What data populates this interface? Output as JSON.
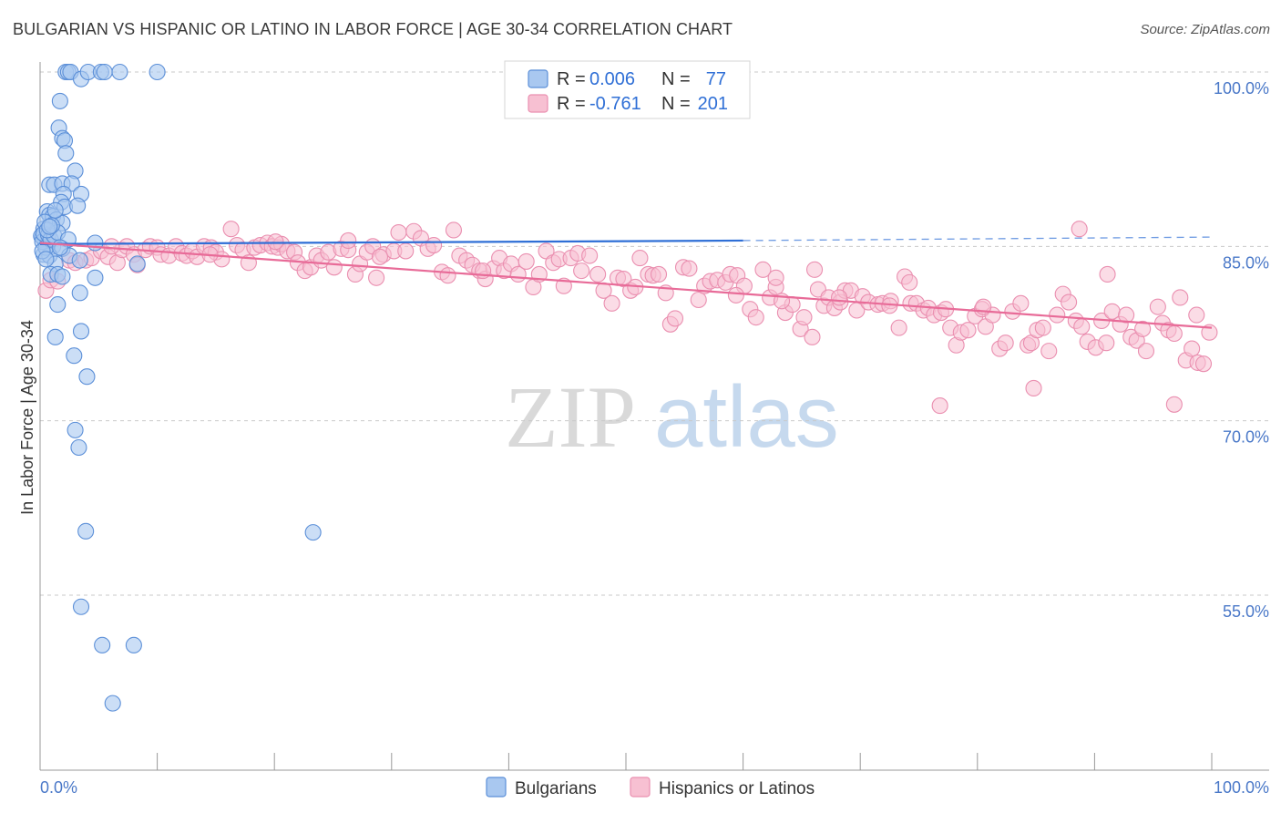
{
  "title": "BULGARIAN VS HISPANIC OR LATINO IN LABOR FORCE | AGE 30-34 CORRELATION CHART",
  "source": "Source: ZipAtlas.com",
  "watermark": {
    "zip": "ZIP",
    "atlas": "atlas"
  },
  "legend": {
    "rows": [
      {
        "r_label": "R =",
        "r_value": "0.006",
        "n_label": "N =",
        "n_value": "77"
      },
      {
        "r_label": "R =",
        "r_value": "-0.761",
        "n_label": "N =",
        "n_value": "201"
      }
    ]
  },
  "bottom_legend": [
    "Bulgarians",
    "Hispanics or Latinos"
  ],
  "colors": {
    "blue_fill": "#a9c8f0",
    "blue_stroke": "#5b8fd8",
    "blue_line": "#2f6fd6",
    "pink_fill": "#f7c0d2",
    "pink_stroke": "#ea8fb0",
    "pink_line": "#e86b98",
    "grid": "#c9c9c9",
    "tick_text": "#4a78c8"
  },
  "chart_data": {
    "type": "scatter",
    "title": "BULGARIAN VS HISPANIC OR LATINO IN LABOR FORCE | AGE 30-34 CORRELATION CHART",
    "ylabel": "In Labor Force | Age 30-34",
    "xlabel": "",
    "x_tick_labels": [
      "0.0%",
      "100.0%"
    ],
    "y_tick_labels": [
      "100.0%",
      "85.0%",
      "70.0%",
      "55.0%"
    ],
    "y_ticks": [
      100,
      85,
      70,
      55
    ],
    "xlim": [
      0,
      100
    ],
    "ylim": [
      41,
      102
    ],
    "grid": "horizontal dashed",
    "legend_position": "top-center",
    "series": [
      {
        "name": "Bulgarians",
        "r": 0.006,
        "n": 77,
        "trend": {
          "x": [
            0,
            60
          ],
          "y": [
            85.2,
            85.5
          ]
        },
        "trend_dashed": {
          "x": [
            60,
            100
          ],
          "y": [
            85.5,
            85.8
          ]
        },
        "points": [
          [
            2.2,
            100
          ],
          [
            2.4,
            100
          ],
          [
            2.6,
            100
          ],
          [
            3.5,
            99.4
          ],
          [
            4.1,
            100
          ],
          [
            5.2,
            100
          ],
          [
            5.5,
            100
          ],
          [
            6.8,
            100
          ],
          [
            10,
            100
          ],
          [
            1.7,
            97.5
          ],
          [
            1.6,
            95.2
          ],
          [
            1.9,
            94.3
          ],
          [
            2.1,
            94.1
          ],
          [
            2.2,
            93
          ],
          [
            3,
            91.5
          ],
          [
            0.8,
            90.3
          ],
          [
            1.2,
            90.3
          ],
          [
            1.9,
            90.4
          ],
          [
            2.7,
            90.4
          ],
          [
            2,
            89.5
          ],
          [
            3.5,
            89.5
          ],
          [
            1.8,
            88.8
          ],
          [
            2.1,
            88.4
          ],
          [
            3.2,
            88.5
          ],
          [
            0.6,
            88
          ],
          [
            0.8,
            87.7
          ],
          [
            1.1,
            87.6
          ],
          [
            1.4,
            87.3
          ],
          [
            1.9,
            87
          ],
          [
            0.3,
            86.5
          ],
          [
            0.2,
            85.8
          ],
          [
            0.4,
            85.5
          ],
          [
            0.6,
            85.2
          ],
          [
            1.1,
            85
          ],
          [
            1.9,
            84.8
          ],
          [
            0.3,
            84.3
          ],
          [
            0.8,
            84.2
          ],
          [
            2.5,
            84.2
          ],
          [
            4.7,
            85.3
          ],
          [
            1.3,
            83.5
          ],
          [
            3.4,
            83.8
          ],
          [
            8.3,
            83.5
          ],
          [
            0.9,
            82.6
          ],
          [
            1.5,
            82.6
          ],
          [
            1.9,
            82.4
          ],
          [
            4.7,
            82.3
          ],
          [
            3.4,
            81
          ],
          [
            1.5,
            80
          ],
          [
            3.5,
            77.7
          ],
          [
            1.3,
            77.2
          ],
          [
            2.9,
            75.6
          ],
          [
            4,
            73.8
          ],
          [
            3,
            69.2
          ],
          [
            3.3,
            67.7
          ],
          [
            3.9,
            60.5
          ],
          [
            23.3,
            60.4
          ],
          [
            3.5,
            54
          ],
          [
            5.3,
            50.7
          ],
          [
            8,
            50.7
          ],
          [
            6.2,
            45.7
          ],
          [
            0.1,
            85.9
          ],
          [
            0.2,
            85.4
          ],
          [
            0.3,
            86.1
          ],
          [
            0.5,
            84.9
          ],
          [
            0.7,
            86
          ],
          [
            0.9,
            85.6
          ],
          [
            1.2,
            85.9
          ],
          [
            1.5,
            86.2
          ],
          [
            0.4,
            87.1
          ],
          [
            0.6,
            86.4
          ],
          [
            1,
            86.8
          ],
          [
            2.4,
            85.6
          ],
          [
            0.2,
            84.6
          ],
          [
            0.5,
            83.9
          ],
          [
            1.7,
            84.9
          ],
          [
            0.8,
            86.7
          ],
          [
            1.3,
            88.1
          ]
        ]
      },
      {
        "name": "Hispanics or Latinos",
        "r": -0.761,
        "n": 201,
        "trend": {
          "x": [
            0,
            100
          ],
          "y": [
            85.3,
            78
          ]
        },
        "points": [
          [
            0.5,
            81.2
          ],
          [
            0.9,
            82.1
          ],
          [
            1.5,
            82
          ],
          [
            2.5,
            83.8
          ],
          [
            3,
            83.6
          ],
          [
            3.9,
            83.8
          ],
          [
            4.4,
            84
          ],
          [
            5.2,
            84.6
          ],
          [
            5.8,
            84.1
          ],
          [
            6.6,
            83.6
          ],
          [
            7,
            84.7
          ],
          [
            7.4,
            85
          ],
          [
            8,
            84.3
          ],
          [
            8.3,
            83.4
          ],
          [
            9,
            84.7
          ],
          [
            9.4,
            85
          ],
          [
            10,
            84.9
          ],
          [
            10.3,
            84.3
          ],
          [
            11,
            84.2
          ],
          [
            11.6,
            85
          ],
          [
            12.1,
            84.4
          ],
          [
            12.5,
            84.2
          ],
          [
            13,
            84.6
          ],
          [
            13.4,
            84.1
          ],
          [
            14,
            85
          ],
          [
            14.6,
            84.9
          ],
          [
            15,
            84.5
          ],
          [
            15.5,
            83.9
          ],
          [
            16.3,
            86.5
          ],
          [
            16.8,
            85.1
          ],
          [
            17.3,
            84.7
          ],
          [
            17.8,
            83.6
          ],
          [
            18.3,
            84.9
          ],
          [
            18.8,
            85.1
          ],
          [
            19.4,
            85.3
          ],
          [
            19.8,
            85
          ],
          [
            20.3,
            84.9
          ],
          [
            20.6,
            85.2
          ],
          [
            21.1,
            84.6
          ],
          [
            21.7,
            84.5
          ],
          [
            22,
            83.6
          ],
          [
            22.6,
            82.9
          ],
          [
            23.1,
            83.2
          ],
          [
            23.6,
            84.2
          ],
          [
            24,
            83.8
          ],
          [
            24.6,
            84.5
          ],
          [
            25.1,
            83.2
          ],
          [
            25.7,
            84.8
          ],
          [
            26.3,
            84.7
          ],
          [
            26.9,
            82.6
          ],
          [
            27.3,
            83.5
          ],
          [
            27.9,
            84.5
          ],
          [
            28.4,
            85
          ],
          [
            28.7,
            82.3
          ],
          [
            29.3,
            84.3
          ],
          [
            30.2,
            84.6
          ],
          [
            30.6,
            86.2
          ],
          [
            31.2,
            84.6
          ],
          [
            31.9,
            86.3
          ],
          [
            32.5,
            85.7
          ],
          [
            33.1,
            84.8
          ],
          [
            33.6,
            85.1
          ],
          [
            34.3,
            82.8
          ],
          [
            34.8,
            82.5
          ],
          [
            35.3,
            86.4
          ],
          [
            35.8,
            84.2
          ],
          [
            36.4,
            83.8
          ],
          [
            36.9,
            83.4
          ],
          [
            37.5,
            82.9
          ],
          [
            38,
            82.2
          ],
          [
            38.7,
            83.1
          ],
          [
            39.2,
            84
          ],
          [
            39.6,
            82.9
          ],
          [
            40.2,
            83.5
          ],
          [
            40.8,
            82.6
          ],
          [
            41.5,
            83.7
          ],
          [
            42.1,
            81.5
          ],
          [
            42.6,
            82.6
          ],
          [
            43.2,
            84.6
          ],
          [
            43.8,
            83.6
          ],
          [
            44.3,
            83.9
          ],
          [
            44.7,
            81.6
          ],
          [
            45.3,
            84
          ],
          [
            45.9,
            84.4
          ],
          [
            46.2,
            82.9
          ],
          [
            46.9,
            84.2
          ],
          [
            47.6,
            82.6
          ],
          [
            48.1,
            81.2
          ],
          [
            48.8,
            80.1
          ],
          [
            49.3,
            82.3
          ],
          [
            49.8,
            82.2
          ],
          [
            50.4,
            81.2
          ],
          [
            50.8,
            81.5
          ],
          [
            51.2,
            84
          ],
          [
            51.9,
            82.6
          ],
          [
            52.3,
            82.5
          ],
          [
            52.8,
            82.6
          ],
          [
            53.4,
            81
          ],
          [
            53.8,
            78.3
          ],
          [
            54.2,
            78.8
          ],
          [
            54.9,
            83.2
          ],
          [
            55.4,
            83.1
          ],
          [
            56.2,
            80.4
          ],
          [
            56.7,
            81.6
          ],
          [
            57.2,
            82
          ],
          [
            57.8,
            82.1
          ],
          [
            58.5,
            81.9
          ],
          [
            58.9,
            82.6
          ],
          [
            59.5,
            82.5
          ],
          [
            60.1,
            81.6
          ],
          [
            60.6,
            79.6
          ],
          [
            61.1,
            78.9
          ],
          [
            61.7,
            83
          ],
          [
            62.3,
            80.6
          ],
          [
            62.8,
            81.5
          ],
          [
            63.6,
            79.3
          ],
          [
            64.2,
            80
          ],
          [
            64.9,
            77.9
          ],
          [
            65.2,
            78.9
          ],
          [
            65.9,
            77.2
          ],
          [
            66.4,
            81.3
          ],
          [
            66.9,
            79.9
          ],
          [
            67.3,
            80.6
          ],
          [
            67.8,
            79.7
          ],
          [
            68.3,
            80.2
          ],
          [
            68.7,
            81.2
          ],
          [
            69.2,
            81.2
          ],
          [
            69.7,
            79.5
          ],
          [
            70.2,
            80.7
          ],
          [
            70.7,
            80.2
          ],
          [
            71.5,
            80
          ],
          [
            71.9,
            80.1
          ],
          [
            72.6,
            80.3
          ],
          [
            73.3,
            78
          ],
          [
            73.8,
            82.4
          ],
          [
            74.3,
            80.1
          ],
          [
            74.8,
            80.1
          ],
          [
            75.4,
            79.5
          ],
          [
            75.8,
            79.7
          ],
          [
            76.3,
            79.1
          ],
          [
            76.9,
            79.3
          ],
          [
            77.3,
            79.6
          ],
          [
            77.7,
            78
          ],
          [
            78.2,
            76.5
          ],
          [
            78.6,
            77.6
          ],
          [
            79.2,
            77.8
          ],
          [
            79.8,
            79
          ],
          [
            80.4,
            79.6
          ],
          [
            80.7,
            78.1
          ],
          [
            81.3,
            79.1
          ],
          [
            81.9,
            76.2
          ],
          [
            82.4,
            76.7
          ],
          [
            83,
            79.4
          ],
          [
            83.7,
            80.1
          ],
          [
            84.3,
            76.5
          ],
          [
            84.6,
            76.7
          ],
          [
            85.1,
            77.8
          ],
          [
            85.6,
            78
          ],
          [
            86.1,
            76
          ],
          [
            86.8,
            79.1
          ],
          [
            87.3,
            80.9
          ],
          [
            87.8,
            80.2
          ],
          [
            88.4,
            78.6
          ],
          [
            88.9,
            78.1
          ],
          [
            89.4,
            76.8
          ],
          [
            90.1,
            76.3
          ],
          [
            90.6,
            78.6
          ],
          [
            91,
            76.7
          ],
          [
            91.5,
            79.4
          ],
          [
            92.2,
            78.3
          ],
          [
            92.7,
            79.1
          ],
          [
            93.1,
            77.2
          ],
          [
            93.6,
            76.9
          ],
          [
            94.4,
            76
          ],
          [
            95.4,
            79.8
          ],
          [
            95.8,
            78.4
          ],
          [
            96.3,
            77.8
          ],
          [
            96.8,
            77.5
          ],
          [
            97.3,
            80.6
          ],
          [
            97.8,
            75.2
          ],
          [
            98.3,
            76.2
          ],
          [
            98.8,
            75
          ],
          [
            99.3,
            74.9
          ],
          [
            99.8,
            77.6
          ],
          [
            84.8,
            72.8
          ],
          [
            76.8,
            71.3
          ],
          [
            96.8,
            71.4
          ],
          [
            88.7,
            86.5
          ],
          [
            26.3,
            85.5
          ],
          [
            29,
            84.1
          ],
          [
            14.5,
            84.3
          ],
          [
            6.1,
            85
          ],
          [
            20.1,
            85.4
          ],
          [
            37.8,
            82.9
          ],
          [
            63.3,
            80.3
          ],
          [
            68.2,
            80.6
          ],
          [
            72.5,
            79.9
          ],
          [
            91.1,
            82.6
          ],
          [
            98.7,
            79.1
          ],
          [
            94.1,
            77.9
          ],
          [
            80.5,
            79.8
          ],
          [
            59.4,
            80.8
          ],
          [
            66.1,
            83
          ],
          [
            74.2,
            81.9
          ],
          [
            62.8,
            82.3
          ]
        ]
      }
    ]
  }
}
